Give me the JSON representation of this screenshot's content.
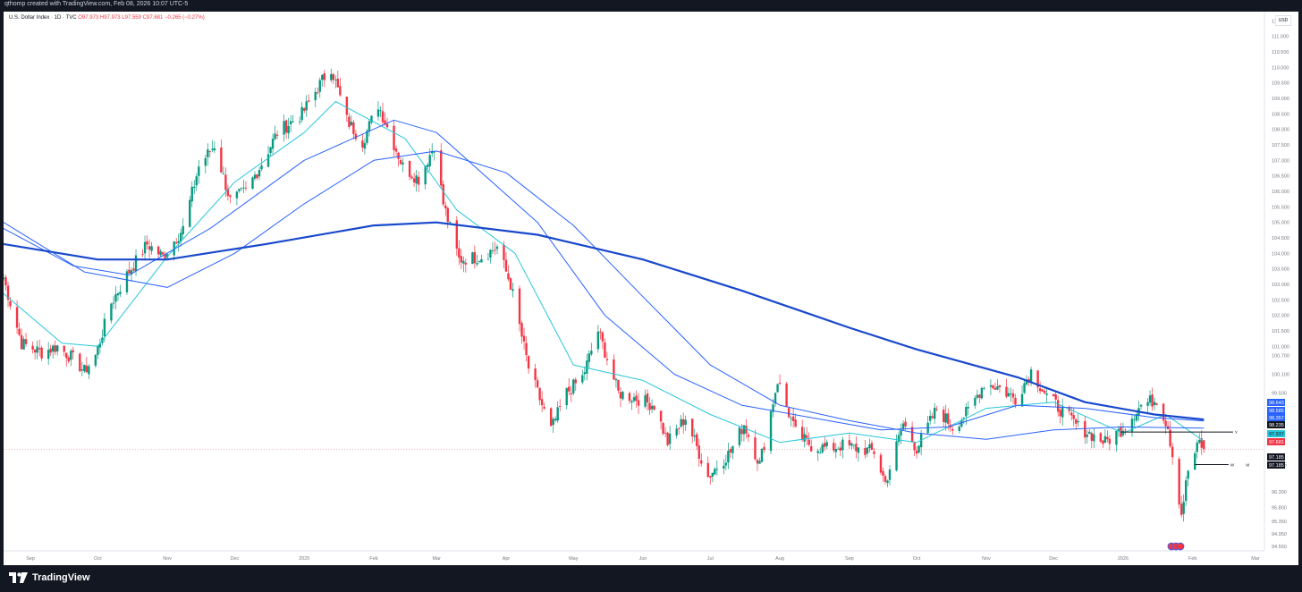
{
  "header": {
    "attribution": "qthomp created with TradingView.com, Feb 08, 2026 10:07 UTC-5"
  },
  "legend": {
    "symbol": "U.S. Dollar Index · 1D · TVC",
    "ohlc": "O97.973 H97.973 L97.559 C97.681 −0.265 (−0.27%)"
  },
  "price_axis": {
    "unit": "USD",
    "ticks": [
      "111.500",
      "111.000",
      "110.500",
      "110.000",
      "109.500",
      "109.000",
      "108.500",
      "108.000",
      "107.500",
      "107.000",
      "106.500",
      "106.000",
      "105.500",
      "105.000",
      "104.500",
      "104.000",
      "103.500",
      "103.000",
      "102.500",
      "102.000",
      "101.500",
      "101.000",
      "100.700",
      "100.100",
      "99.500",
      "97.185",
      "96.300",
      "95.800",
      "95.350",
      "94.950",
      "94.550"
    ],
    "labels": [
      {
        "text": "98.643",
        "color": "#2962ff",
        "text_color": "#ffffff"
      },
      {
        "text": "98.585",
        "color": "#2962ff",
        "text_color": "#ffffff"
      },
      {
        "text": "98.357",
        "color": "#2962ff",
        "text_color": "#ffffff"
      },
      {
        "text": "98.235",
        "color": "#131722",
        "text_color": "#ffffff"
      },
      {
        "text": "97.937",
        "color": "#26c6da",
        "text_color": "#131722"
      },
      {
        "text": "97.681",
        "color": "#f23645",
        "text_color": "#ffffff"
      },
      {
        "text": "97.185",
        "color": "#131722",
        "text_color": "#ffffff"
      },
      {
        "text": "97.185",
        "color": "#131722",
        "text_color": "#ffffff"
      }
    ]
  },
  "time_axis": {
    "labels": [
      "Sep",
      "Oct",
      "Nov",
      "Dec",
      "2025",
      "Feb",
      "Mar",
      "Apr",
      "May",
      "Jun",
      "Jul",
      "Aug",
      "Sep",
      "Oct",
      "Nov",
      "Dec",
      "2026",
      "Feb",
      "Mar"
    ]
  },
  "annotations": [
    {
      "text": "Y"
    },
    {
      "text": "W"
    },
    {
      "text": "M"
    }
  ],
  "footer": {
    "brand": "TradingView"
  },
  "colors": {
    "up": "#089981",
    "down": "#f23645",
    "ma_fast": "#26c6da",
    "ma_mid": "#2962ff",
    "ma_slow": "#1848cc",
    "bg": "#ffffff",
    "frame": "#131722"
  },
  "chart_data": {
    "type": "candlestick",
    "title": "U.S. Dollar Index · 1D · TVC",
    "xlabel": "",
    "ylabel": "",
    "ylim": [
      94.4,
      111.8
    ],
    "x_range": [
      "2024-08-20",
      "2026-03-05"
    ],
    "grid": false,
    "anchors": [
      [
        "2024-08-20",
        103.2
      ],
      [
        "2024-08-28",
        101.1
      ],
      [
        "2024-09-06",
        100.8
      ],
      [
        "2024-09-13",
        101.0
      ],
      [
        "2024-09-20",
        100.6
      ],
      [
        "2024-09-25",
        100.2
      ],
      [
        "2024-09-30",
        100.7
      ],
      [
        "2024-10-07",
        102.4
      ],
      [
        "2024-10-14",
        103.3
      ],
      [
        "2024-10-23",
        104.3
      ],
      [
        "2024-10-30",
        103.9
      ],
      [
        "2024-11-08",
        104.8
      ],
      [
        "2024-11-15",
        106.8
      ],
      [
        "2024-11-22",
        107.5
      ],
      [
        "2024-11-29",
        105.7
      ],
      [
        "2024-12-06",
        106.0
      ],
      [
        "2024-12-13",
        106.9
      ],
      [
        "2024-12-20",
        107.9
      ],
      [
        "2024-12-31",
        108.5
      ],
      [
        "2025-01-10",
        109.7
      ],
      [
        "2025-01-13",
        110.0
      ],
      [
        "2025-01-20",
        108.3
      ],
      [
        "2025-01-27",
        107.6
      ],
      [
        "2025-02-03",
        108.8
      ],
      [
        "2025-02-14",
        106.8
      ],
      [
        "2025-02-21",
        106.4
      ],
      [
        "2025-02-28",
        107.5
      ],
      [
        "2025-03-04",
        105.6
      ],
      [
        "2025-03-11",
        103.8
      ],
      [
        "2025-03-21",
        103.9
      ],
      [
        "2025-03-28",
        104.2
      ],
      [
        "2025-04-03",
        103.0
      ],
      [
        "2025-04-11",
        100.3
      ],
      [
        "2025-04-21",
        98.3
      ],
      [
        "2025-04-28",
        99.5
      ],
      [
        "2025-05-05",
        100.0
      ],
      [
        "2025-05-12",
        101.5
      ],
      [
        "2025-05-21",
        99.5
      ],
      [
        "2025-05-30",
        99.3
      ],
      [
        "2025-06-06",
        99.1
      ],
      [
        "2025-06-12",
        97.9
      ],
      [
        "2025-06-20",
        98.7
      ],
      [
        "2025-06-30",
        96.8
      ],
      [
        "2025-07-10",
        97.6
      ],
      [
        "2025-07-16",
        98.5
      ],
      [
        "2025-07-23",
        97.2
      ],
      [
        "2025-07-31",
        99.9
      ],
      [
        "2025-08-08",
        98.2
      ],
      [
        "2025-08-15",
        97.8
      ],
      [
        "2025-08-22",
        97.7
      ],
      [
        "2025-08-29",
        97.8
      ],
      [
        "2025-09-05",
        97.7
      ],
      [
        "2025-09-12",
        97.6
      ],
      [
        "2025-09-17",
        96.6
      ],
      [
        "2025-09-25",
        98.5
      ],
      [
        "2025-10-01",
        97.7
      ],
      [
        "2025-10-10",
        99.0
      ],
      [
        "2025-10-17",
        98.4
      ],
      [
        "2025-10-24",
        98.9
      ],
      [
        "2025-10-31",
        99.8
      ],
      [
        "2025-11-06",
        99.7
      ],
      [
        "2025-11-14",
        99.3
      ],
      [
        "2025-11-21",
        100.2
      ],
      [
        "2025-11-28",
        99.4
      ],
      [
        "2025-12-05",
        98.9
      ],
      [
        "2025-12-12",
        98.4
      ],
      [
        "2025-12-24",
        97.9
      ],
      [
        "2025-12-31",
        98.3
      ],
      [
        "2026-01-09",
        99.1
      ],
      [
        "2026-01-16",
        99.3
      ],
      [
        "2026-01-21",
        98.4
      ],
      [
        "2026-01-23",
        97.5
      ],
      [
        "2026-01-27",
        95.6
      ],
      [
        "2026-01-30",
        97.0
      ],
      [
        "2026-02-04",
        97.9
      ],
      [
        "2026-02-06",
        97.68
      ]
    ],
    "moving_averages": [
      {
        "name": "",
        "role": "ma_fast",
        "points": [
          [
            "2024-08-20",
            102.7
          ],
          [
            "2024-09-15",
            101.1
          ],
          [
            "2024-10-01",
            101.0
          ],
          [
            "2024-11-01",
            103.9
          ],
          [
            "2024-12-01",
            106.3
          ],
          [
            "2025-01-01",
            107.9
          ],
          [
            "2025-01-15",
            108.9
          ],
          [
            "2025-02-15",
            107.7
          ],
          [
            "2025-03-10",
            105.4
          ],
          [
            "2025-04-05",
            104.0
          ],
          [
            "2025-05-01",
            100.4
          ],
          [
            "2025-06-01",
            99.9
          ],
          [
            "2025-07-01",
            98.8
          ],
          [
            "2025-08-01",
            97.9
          ],
          [
            "2025-09-01",
            98.2
          ],
          [
            "2025-10-01",
            97.9
          ],
          [
            "2025-11-01",
            99.0
          ],
          [
            "2025-12-01",
            99.2
          ],
          [
            "2026-01-01",
            98.2
          ],
          [
            "2026-01-20",
            98.8
          ],
          [
            "2026-02-06",
            97.94
          ]
        ]
      },
      {
        "name": "",
        "role": "ma_mid",
        "points": [
          [
            "2024-08-20",
            104.8
          ],
          [
            "2024-09-20",
            103.6
          ],
          [
            "2024-10-15",
            103.3
          ],
          [
            "2024-11-20",
            104.8
          ],
          [
            "2025-01-01",
            107.0
          ],
          [
            "2025-02-10",
            108.3
          ],
          [
            "2025-03-01",
            107.9
          ],
          [
            "2025-04-15",
            105.0
          ],
          [
            "2025-05-15",
            102.0
          ],
          [
            "2025-06-15",
            100.1
          ],
          [
            "2025-07-15",
            99.1
          ],
          [
            "2025-08-15",
            98.7
          ],
          [
            "2025-09-15",
            98.3
          ],
          [
            "2025-10-15",
            98.4
          ],
          [
            "2025-11-15",
            99.1
          ],
          [
            "2025-12-15",
            99.0
          ],
          [
            "2026-01-15",
            98.7
          ],
          [
            "2026-02-06",
            98.59
          ]
        ]
      },
      {
        "name": "",
        "role": "ma_mid",
        "points": [
          [
            "2024-08-20",
            105.0
          ],
          [
            "2024-09-25",
            103.4
          ],
          [
            "2024-11-01",
            102.9
          ],
          [
            "2024-12-01",
            104.0
          ],
          [
            "2025-01-01",
            105.6
          ],
          [
            "2025-02-01",
            107.0
          ],
          [
            "2025-03-01",
            107.3
          ],
          [
            "2025-04-01",
            106.6
          ],
          [
            "2025-05-01",
            104.9
          ],
          [
            "2025-06-01",
            102.6
          ],
          [
            "2025-07-01",
            100.4
          ],
          [
            "2025-08-01",
            99.1
          ],
          [
            "2025-09-01",
            98.6
          ],
          [
            "2025-10-01",
            98.2
          ],
          [
            "2025-11-01",
            98.0
          ],
          [
            "2025-12-01",
            98.3
          ],
          [
            "2026-01-01",
            98.4
          ],
          [
            "2026-02-06",
            98.36
          ]
        ]
      },
      {
        "name": "",
        "role": "ma_slow",
        "points": [
          [
            "2024-08-20",
            104.3
          ],
          [
            "2024-10-01",
            103.8
          ],
          [
            "2024-11-01",
            103.8
          ],
          [
            "2024-12-15",
            104.3
          ],
          [
            "2025-02-01",
            104.9
          ],
          [
            "2025-03-01",
            105.0
          ],
          [
            "2025-04-15",
            104.6
          ],
          [
            "2025-06-01",
            103.8
          ],
          [
            "2025-07-15",
            102.8
          ],
          [
            "2025-09-01",
            101.6
          ],
          [
            "2025-10-01",
            100.9
          ],
          [
            "2025-11-15",
            100.0
          ],
          [
            "2025-12-15",
            99.2
          ],
          [
            "2026-01-15",
            98.8
          ],
          [
            "2026-02-06",
            98.64
          ]
        ]
      }
    ],
    "levels": [
      {
        "label": "Y",
        "price": 98.235,
        "from": "2025-12-31",
        "to": "2026-02-19"
      },
      {
        "label": "W",
        "price": 97.185,
        "from": "2026-02-02",
        "to": "2026-02-17"
      },
      {
        "label": "M",
        "price": 97.185,
        "from": "2026-02-02",
        "to": "2026-02-24"
      }
    ]
  }
}
